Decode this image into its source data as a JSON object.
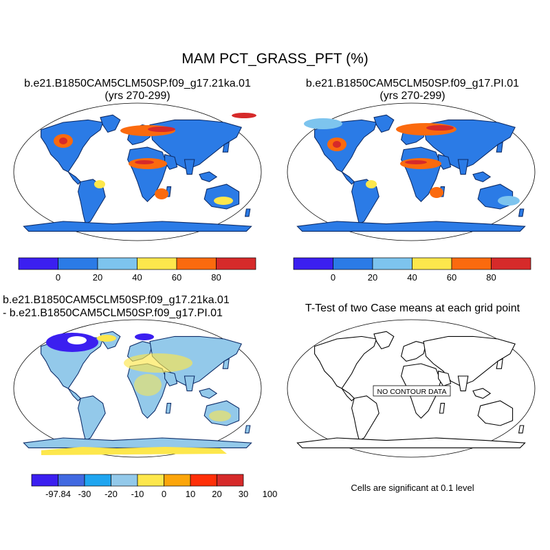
{
  "figure": {
    "title": "MAM PCT_GRASS_PFT (%)"
  },
  "panels": [
    {
      "id": "case",
      "title": "b.e21.B1850CAM5CLM50SP.f09_g17.21ka.01",
      "subtitle": "(yrs 270-299)",
      "colorbar_labels": [
        "0",
        "20",
        "40",
        "60",
        "80"
      ]
    },
    {
      "id": "control",
      "title": "b.e21.B1850CAM5CLM50SP.f09_g17.PI.01",
      "subtitle": "(yrs 270-299)",
      "colorbar_labels": [
        "0",
        "20",
        "40",
        "60",
        "80"
      ]
    },
    {
      "id": "difference",
      "title": "b.e21.B1850CAM5CLM50SP.f09_g17.21ka.01",
      "subtitle": "- b.e21.B1850CAM5CLM50SP.f09_g17.PI.01",
      "colorbar_labels": [
        "-97.84",
        "-30",
        "-20",
        "-10",
        "0",
        "10",
        "20",
        "30",
        "100"
      ]
    },
    {
      "id": "ttest",
      "title": "T-Test of two Case means at each grid point",
      "map_label": "NO CONTOUR DATA",
      "note": "Cells are significant at 0.1 level"
    }
  ],
  "chart_data": [
    {
      "type": "heatmap",
      "title": "b.e21.B1850CAM5CLM50SP.f09_g17.21ka.01 (yrs 270-299)",
      "variable": "MAM PCT_GRASS_PFT (%)",
      "projection": "Robinson",
      "levels": [
        0,
        20,
        40,
        60,
        80
      ],
      "colors": [
        "#3b1ff0",
        "#2b7be6",
        "#7dc4ee",
        "#fde74c",
        "#fb6a0e",
        "#d62a2a"
      ]
    },
    {
      "type": "heatmap",
      "title": "b.e21.B1850CAM5CLM50SP.f09_g17.PI.01 (yrs 270-299)",
      "variable": "MAM PCT_GRASS_PFT (%)",
      "projection": "Robinson",
      "levels": [
        0,
        20,
        40,
        60,
        80
      ],
      "colors": [
        "#3b1ff0",
        "#2b7be6",
        "#7dc4ee",
        "#fde74c",
        "#fb6a0e",
        "#d62a2a"
      ]
    },
    {
      "type": "heatmap",
      "title": "21ka.01 - PI.01 difference",
      "variable": "MAM PCT_GRASS_PFT (%)",
      "projection": "Robinson",
      "levels": [
        -97.84,
        -30,
        -20,
        -10,
        0,
        10,
        20,
        30,
        100
      ],
      "colors": [
        "#3b1ff0",
        "#4169e1",
        "#1fa5f0",
        "#93c9ea",
        "#fde74c",
        "#fca50a",
        "#ff2f08",
        "#d62a2a"
      ]
    },
    {
      "type": "heatmap",
      "title": "T-Test of two Case means at each grid point",
      "projection": "Robinson",
      "significance_level": 0.1,
      "levels": []
    }
  ]
}
